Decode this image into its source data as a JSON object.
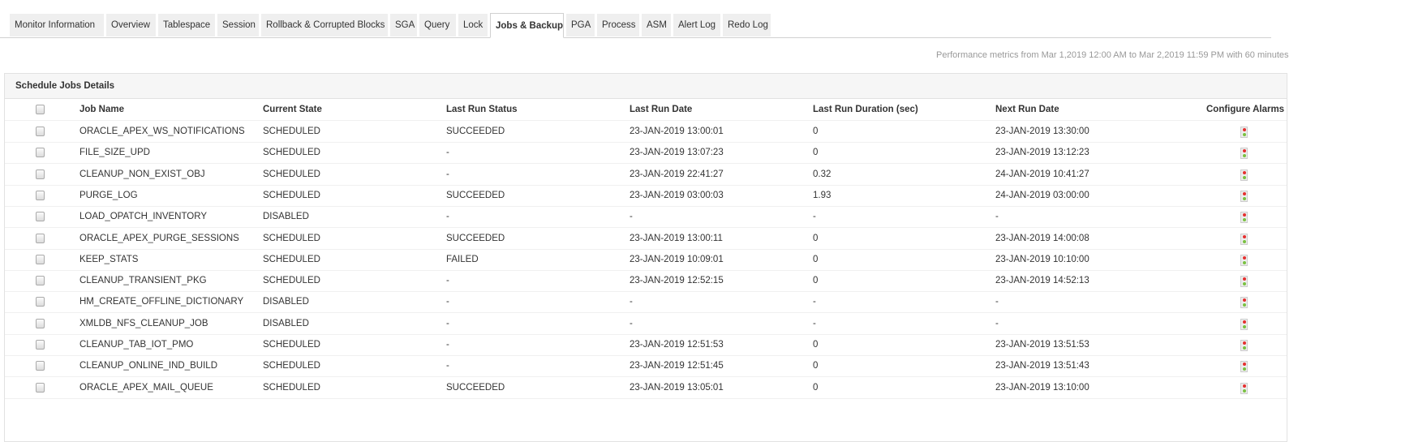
{
  "tabs": [
    "Monitor Information",
    "Overview",
    "Tablespace",
    "Session",
    "Rollback & Corrupted Blocks",
    "SGA",
    "Query",
    "Lock",
    "Jobs & Backup",
    "PGA",
    "Process",
    "ASM",
    "Alert Log",
    "Redo Log"
  ],
  "active_tab": "Jobs & Backup",
  "perf_text": "Performance metrics from Mar 1,2019 12:00 AM to Mar 2,2019 11:59 PM with 60 minutes",
  "panel": {
    "title": "Schedule Jobs Details",
    "columns": [
      "Job Name",
      "Current State",
      "Last Run Status",
      "Last Run Date",
      "Last Run Duration  (sec)",
      "Next Run Date",
      "Configure Alarms"
    ],
    "rows": [
      [
        "ORACLE_APEX_WS_NOTIFICATIONS",
        "SCHEDULED",
        "SUCCEEDED",
        "23-JAN-2019 13:00:01",
        "0",
        "23-JAN-2019 13:30:00"
      ],
      [
        "FILE_SIZE_UPD",
        "SCHEDULED",
        "-",
        "23-JAN-2019 13:07:23",
        "0",
        "23-JAN-2019 13:12:23"
      ],
      [
        "CLEANUP_NON_EXIST_OBJ",
        "SCHEDULED",
        "-",
        "23-JAN-2019 22:41:27",
        "0.32",
        "24-JAN-2019 10:41:27"
      ],
      [
        "PURGE_LOG",
        "SCHEDULED",
        "SUCCEEDED",
        "23-JAN-2019 03:00:03",
        "1.93",
        "24-JAN-2019 03:00:00"
      ],
      [
        "LOAD_OPATCH_INVENTORY",
        "DISABLED",
        "-",
        "-",
        "-",
        "-"
      ],
      [
        "ORACLE_APEX_PURGE_SESSIONS",
        "SCHEDULED",
        "SUCCEEDED",
        "23-JAN-2019 13:00:11",
        "0",
        "23-JAN-2019 14:00:08"
      ],
      [
        "KEEP_STATS",
        "SCHEDULED",
        "FAILED",
        "23-JAN-2019 10:09:01",
        "0",
        "23-JAN-2019 10:10:00"
      ],
      [
        "CLEANUP_TRANSIENT_PKG",
        "SCHEDULED",
        "-",
        "23-JAN-2019 12:52:15",
        "0",
        "23-JAN-2019 14:52:13"
      ],
      [
        "HM_CREATE_OFFLINE_DICTIONARY",
        "DISABLED",
        "-",
        "-",
        "-",
        "-"
      ],
      [
        "XMLDB_NFS_CLEANUP_JOB",
        "DISABLED",
        "-",
        "-",
        "-",
        "-"
      ],
      [
        "CLEANUP_TAB_IOT_PMO",
        "SCHEDULED",
        "-",
        "23-JAN-2019 12:51:53",
        "0",
        "23-JAN-2019 13:51:53"
      ],
      [
        "CLEANUP_ONLINE_IND_BUILD",
        "SCHEDULED",
        "-",
        "23-JAN-2019 12:51:45",
        "0",
        "23-JAN-2019 13:51:43"
      ],
      [
        "ORACLE_APEX_MAIL_QUEUE",
        "SCHEDULED",
        "SUCCEEDED",
        "23-JAN-2019 13:05:01",
        "0",
        "23-JAN-2019 13:10:00"
      ]
    ]
  },
  "alarm_icon": "traffic-light-icon",
  "colors": {
    "alarm_red": "#e53030",
    "alarm_green": "#7ac142"
  }
}
